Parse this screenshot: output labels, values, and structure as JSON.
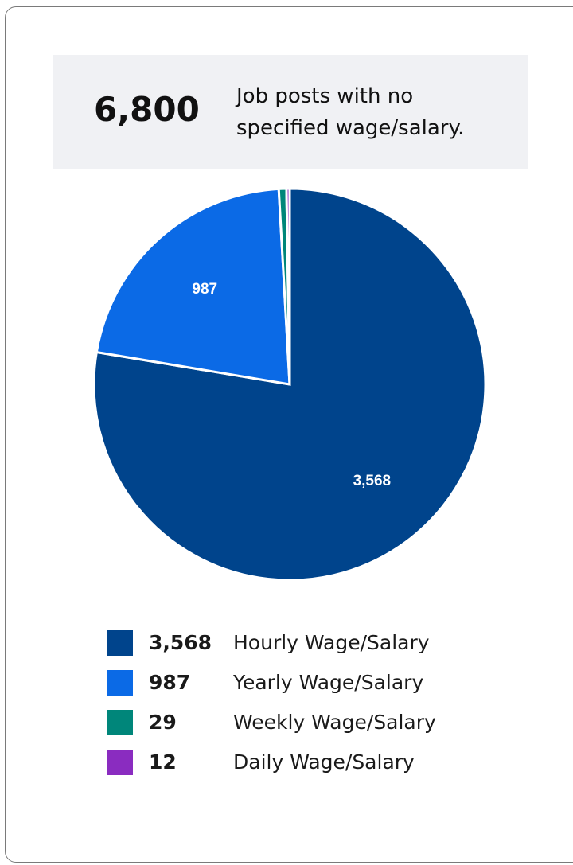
{
  "summary": {
    "value_label": "6,800",
    "text": "Job posts with no specified wage/salary."
  },
  "chart_data": {
    "type": "pie",
    "categories": [
      "Hourly Wage/Salary",
      "Yearly Wage/Salary",
      "Weekly Wage/Salary",
      "Daily Wage/Salary"
    ],
    "values": [
      3568,
      987,
      29,
      12
    ],
    "value_labels": [
      "3,568",
      "987",
      "29",
      "12"
    ],
    "colors": [
      "#00448c",
      "#0b6ae6",
      "#00867a",
      "#8a2cc0"
    ]
  }
}
